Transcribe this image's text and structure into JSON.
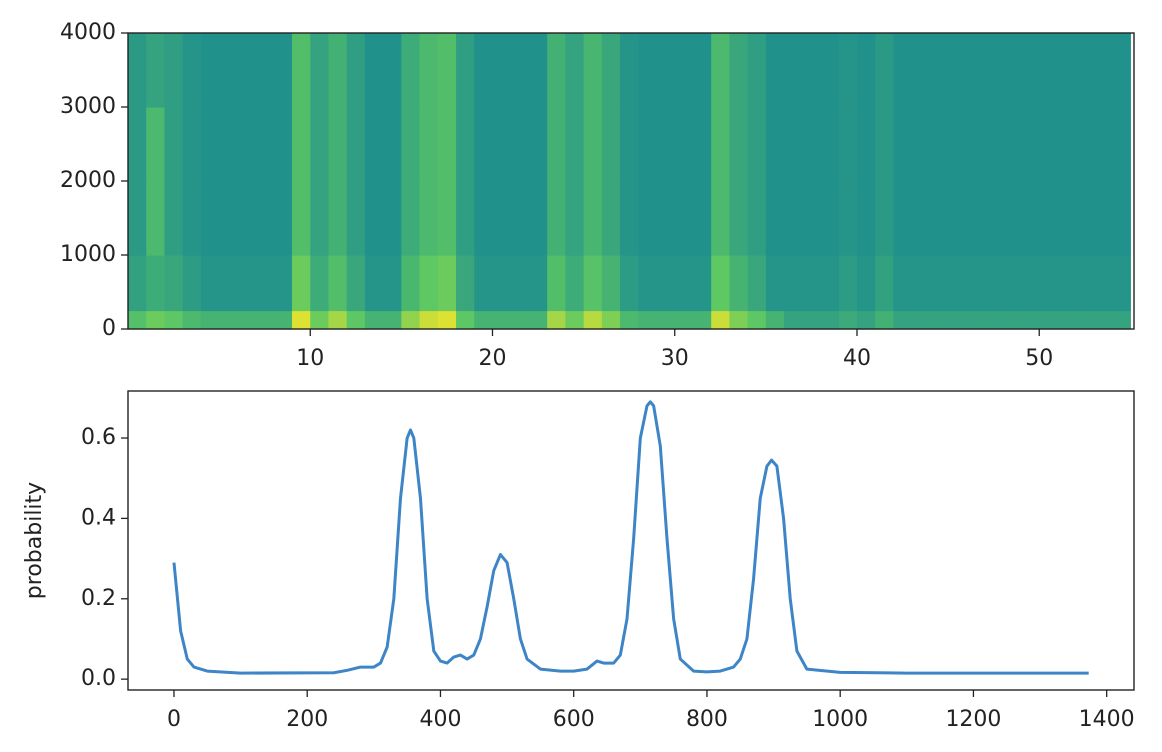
{
  "chart_data": [
    {
      "type": "heatmap",
      "colormap": "viridis",
      "clim": [
        0,
        1
      ],
      "x_edges": [
        0,
        1,
        2,
        3,
        4,
        5,
        6,
        7,
        8,
        9,
        10,
        11,
        12,
        13,
        14,
        15,
        16,
        17,
        18,
        19,
        20,
        21,
        22,
        23,
        24,
        25,
        26,
        27,
        28,
        29,
        30,
        31,
        32,
        33,
        34,
        35,
        36,
        37,
        38,
        39,
        40,
        41,
        42,
        43,
        44,
        45,
        46,
        47,
        48,
        49,
        50,
        51,
        52,
        53,
        54,
        55
      ],
      "y_edges": [
        0,
        250,
        1000,
        2000,
        3000,
        4000
      ],
      "z": [
        [
          0.71,
          0.77,
          0.74,
          0.68,
          0.65,
          0.65,
          0.65,
          0.65,
          0.65,
          0.95,
          0.77,
          0.86,
          0.74,
          0.65,
          0.65,
          0.83,
          0.92,
          0.95,
          0.74,
          0.65,
          0.65,
          0.65,
          0.65,
          0.86,
          0.77,
          0.89,
          0.8,
          0.68,
          0.65,
          0.65,
          0.65,
          0.65,
          0.92,
          0.8,
          0.74,
          0.65,
          0.58,
          0.58,
          0.58,
          0.61,
          0.58,
          0.64,
          0.58,
          0.58,
          0.58,
          0.58,
          0.58,
          0.58,
          0.58,
          0.58,
          0.58,
          0.58,
          0.58,
          0.58,
          0.58
        ],
        [
          0.57,
          0.62,
          0.6,
          0.55,
          0.52,
          0.52,
          0.52,
          0.52,
          0.52,
          0.77,
          0.62,
          0.7,
          0.6,
          0.52,
          0.52,
          0.67,
          0.75,
          0.77,
          0.6,
          0.52,
          0.52,
          0.52,
          0.52,
          0.7,
          0.62,
          0.72,
          0.65,
          0.55,
          0.52,
          0.52,
          0.52,
          0.52,
          0.75,
          0.65,
          0.6,
          0.52,
          0.52,
          0.52,
          0.52,
          0.55,
          0.52,
          0.57,
          0.52,
          0.52,
          0.52,
          0.52,
          0.52,
          0.52,
          0.52,
          0.52,
          0.52,
          0.52,
          0.52,
          0.52,
          0.52
        ],
        [
          0.54,
          0.68,
          0.56,
          0.52,
          0.5,
          0.5,
          0.5,
          0.5,
          0.5,
          0.7,
          0.58,
          0.64,
          0.56,
          0.5,
          0.5,
          0.62,
          0.68,
          0.7,
          0.56,
          0.5,
          0.5,
          0.5,
          0.5,
          0.64,
          0.58,
          0.66,
          0.6,
          0.52,
          0.5,
          0.5,
          0.5,
          0.5,
          0.68,
          0.6,
          0.56,
          0.5,
          0.5,
          0.5,
          0.5,
          0.52,
          0.5,
          0.54,
          0.5,
          0.5,
          0.5,
          0.5,
          0.5,
          0.5,
          0.5,
          0.5,
          0.5,
          0.5,
          0.5,
          0.5,
          0.5
        ],
        [
          0.54,
          0.68,
          0.56,
          0.52,
          0.5,
          0.5,
          0.5,
          0.5,
          0.5,
          0.7,
          0.58,
          0.64,
          0.56,
          0.5,
          0.5,
          0.62,
          0.68,
          0.7,
          0.56,
          0.5,
          0.5,
          0.5,
          0.5,
          0.64,
          0.58,
          0.66,
          0.6,
          0.52,
          0.5,
          0.5,
          0.5,
          0.5,
          0.68,
          0.6,
          0.56,
          0.5,
          0.5,
          0.5,
          0.5,
          0.52,
          0.5,
          0.54,
          0.5,
          0.5,
          0.5,
          0.5,
          0.5,
          0.5,
          0.5,
          0.5,
          0.5,
          0.5,
          0.5,
          0.5,
          0.5
        ],
        [
          0.54,
          0.58,
          0.56,
          0.52,
          0.5,
          0.5,
          0.5,
          0.5,
          0.5,
          0.7,
          0.58,
          0.64,
          0.56,
          0.5,
          0.5,
          0.62,
          0.68,
          0.7,
          0.56,
          0.5,
          0.5,
          0.5,
          0.5,
          0.64,
          0.58,
          0.66,
          0.6,
          0.52,
          0.5,
          0.5,
          0.5,
          0.5,
          0.68,
          0.6,
          0.56,
          0.5,
          0.5,
          0.5,
          0.5,
          0.52,
          0.5,
          0.54,
          0.5,
          0.5,
          0.5,
          0.5,
          0.5,
          0.5,
          0.5,
          0.5,
          0.5,
          0.5,
          0.5,
          0.5,
          0.5
        ]
      ],
      "xlim": [
        0,
        55.2
      ],
      "xticks": [
        10,
        20,
        30,
        40,
        50
      ],
      "ylim": [
        0,
        4000
      ],
      "yticks": [
        0,
        1000,
        2000,
        3000,
        4000
      ]
    },
    {
      "type": "line",
      "ylabel": "probability",
      "color": "#3d85c6",
      "x": [
        0,
        10,
        20,
        30,
        50,
        100,
        240,
        260,
        280,
        300,
        310,
        320,
        330,
        340,
        350,
        355,
        360,
        370,
        380,
        390,
        400,
        410,
        420,
        430,
        440,
        450,
        460,
        470,
        480,
        490,
        500,
        510,
        520,
        530,
        550,
        580,
        600,
        620,
        635,
        645,
        660,
        670,
        680,
        690,
        700,
        710,
        715,
        720,
        730,
        740,
        750,
        760,
        780,
        800,
        820,
        840,
        850,
        860,
        870,
        880,
        890,
        897,
        905,
        915,
        925,
        935,
        950,
        1000,
        1100,
        1373
      ],
      "values": [
        0.29,
        0.12,
        0.05,
        0.03,
        0.02,
        0.015,
        0.016,
        0.022,
        0.03,
        0.03,
        0.04,
        0.08,
        0.2,
        0.45,
        0.6,
        0.62,
        0.6,
        0.45,
        0.2,
        0.07,
        0.045,
        0.04,
        0.055,
        0.06,
        0.05,
        0.06,
        0.1,
        0.18,
        0.27,
        0.31,
        0.29,
        0.2,
        0.1,
        0.05,
        0.025,
        0.02,
        0.02,
        0.025,
        0.045,
        0.04,
        0.04,
        0.06,
        0.15,
        0.35,
        0.6,
        0.68,
        0.69,
        0.68,
        0.58,
        0.35,
        0.15,
        0.05,
        0.02,
        0.018,
        0.02,
        0.03,
        0.05,
        0.1,
        0.25,
        0.45,
        0.53,
        0.545,
        0.53,
        0.4,
        0.2,
        0.07,
        0.025,
        0.017,
        0.015,
        0.015
      ],
      "xlim": [
        -69,
        1441
      ],
      "xticks": [
        0,
        200,
        400,
        600,
        800,
        1000,
        1200,
        1400
      ],
      "ylim": [
        -0.027,
        0.717
      ],
      "yticks": [
        {
          "value": 0,
          "label": "0.0"
        },
        {
          "value": 0.2,
          "label": "0.2"
        },
        {
          "value": 0.4,
          "label": "0.4"
        },
        {
          "value": 0.6,
          "label": "0.6"
        }
      ]
    }
  ]
}
